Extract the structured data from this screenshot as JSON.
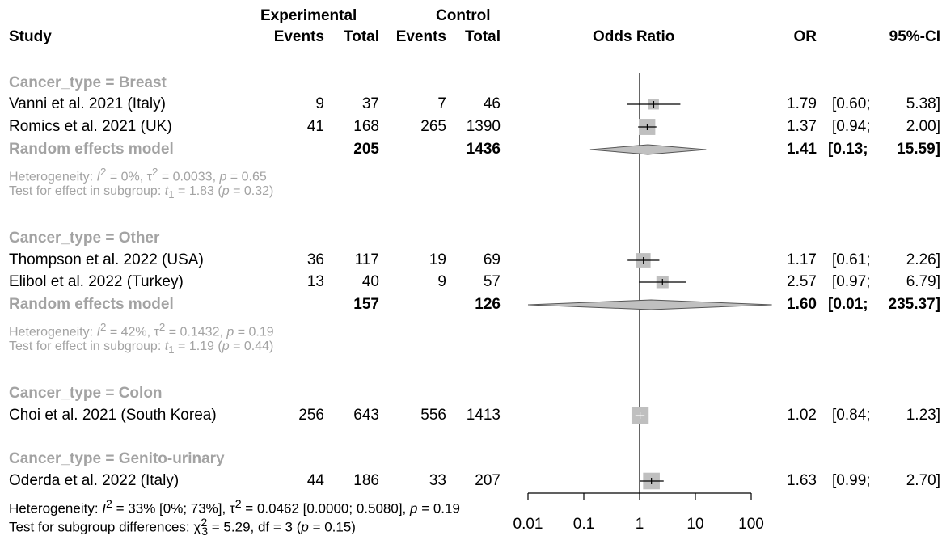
{
  "header": {
    "study": "Study",
    "experimental": "Experimental",
    "control": "Control",
    "events": "Events",
    "total": "Total",
    "odds_ratio": "Odds Ratio",
    "or": "OR",
    "ci": "95%-CI"
  },
  "groups": [
    {
      "title": "Cancer_type = Breast",
      "studies": [
        {
          "name": "Vanni et al. 2021 (Italy)",
          "e_events": "9",
          "e_total": "37",
          "c_events": "7",
          "c_total": "46",
          "or": "1.79",
          "ci_lo": "[0.60;",
          "ci_hi": "5.38]"
        },
        {
          "name": "Romics et al. 2021 (UK)",
          "e_events": "41",
          "e_total": "168",
          "c_events": "265",
          "c_total": "1390",
          "or": "1.37",
          "ci_lo": "[0.94;",
          "ci_hi": "2.00]"
        }
      ],
      "model": {
        "label": "Random effects model",
        "e_total": "205",
        "c_total": "1436",
        "or": "1.41",
        "ci_lo": "[0.13;",
        "ci_hi": "15.59]"
      },
      "heterogeneity": {
        "pre": "Heterogeneity: ",
        "i_sym": "I",
        "i_rest": " = 0%, ",
        "tau_sym": "τ",
        "tau_rest": " = 0.0033, ",
        "p_sym": "p",
        "p_rest": " = 0.65"
      },
      "test": {
        "pre": "Test for effect in subgroup: ",
        "t_sym": "t",
        "t_sub": "1",
        "t_rest": " = 1.83 (",
        "p_sym": "p",
        "p_rest": " = 0.32)"
      }
    },
    {
      "title": "Cancer_type = Other",
      "studies": [
        {
          "name": "Thompson et al. 2022 (USA)",
          "e_events": "36",
          "e_total": "117",
          "c_events": "19",
          "c_total": "69",
          "or": "1.17",
          "ci_lo": "[0.61;",
          "ci_hi": "2.26]"
        },
        {
          "name": "Elibol et al. 2022 (Turkey)",
          "e_events": "13",
          "e_total": "40",
          "c_events": "9",
          "c_total": "57",
          "or": "2.57",
          "ci_lo": "[0.97;",
          "ci_hi": "6.79]"
        }
      ],
      "model": {
        "label": "Random effects model",
        "e_total": "157",
        "c_total": "126",
        "or": "1.60",
        "ci_lo": "[0.01;",
        "ci_hi": "235.37]"
      },
      "heterogeneity": {
        "pre": "Heterogeneity: ",
        "i_sym": "I",
        "i_rest": " = 42%, ",
        "tau_sym": "τ",
        "tau_rest": " = 0.1432, ",
        "p_sym": "p",
        "p_rest": " = 0.19"
      },
      "test": {
        "pre": "Test for effect in subgroup: ",
        "t_sym": "t",
        "t_sub": "1",
        "t_rest": " = 1.19 (",
        "p_sym": "p",
        "p_rest": " = 0.44)"
      }
    },
    {
      "title": "Cancer_type = Colon",
      "studies": [
        {
          "name": "Choi et al. 2021 (South Korea)",
          "e_events": "256",
          "e_total": "643",
          "c_events": "556",
          "c_total": "1413",
          "or": "1.02",
          "ci_lo": "[0.84;",
          "ci_hi": "1.23]"
        }
      ]
    },
    {
      "title": "Cancer_type = Genito-urinary",
      "studies": [
        {
          "name": "Oderda et al. 2022 (Italy)",
          "e_events": "44",
          "e_total": "186",
          "c_events": "33",
          "c_total": "207",
          "or": "1.63",
          "ci_lo": "[0.99;",
          "ci_hi": "2.70]"
        }
      ]
    }
  ],
  "overall_heterogeneity": {
    "pre": "Heterogeneity: ",
    "i_sym": "I",
    "i_rest": " = 33% [0%; 73%], ",
    "tau_sym": "τ",
    "tau_rest": " = 0.0462 [0.0000; 0.5080], ",
    "p_sym": "p",
    "p_rest": " = 0.19"
  },
  "subgroup_test": {
    "pre": "Test for subgroup differences: ",
    "chi_sym": "χ",
    "chi_sub": "3",
    "chi_rest": " = 5.29, df = 3 (",
    "p_sym": "p",
    "p_rest": " = 0.15)"
  },
  "colors": {
    "subgroup_text": "#a3a3a3",
    "box": "#bfbfbf",
    "diamond": "#c0c0c0",
    "line": "#000000"
  },
  "chart_data": {
    "type": "forest",
    "x_scale": "log",
    "xlim": [
      0.01,
      100
    ],
    "x_ticks": [
      "0.01",
      "0.1",
      "1",
      "10",
      "100"
    ],
    "reference_line": 1,
    "studies": [
      {
        "name": "Vanni et al. 2021 (Italy)",
        "group": "Breast",
        "or": 1.79,
        "lo": 0.6,
        "hi": 5.38,
        "weight": 0.35
      },
      {
        "name": "Romics et al. 2021 (UK)",
        "group": "Breast",
        "or": 1.37,
        "lo": 0.94,
        "hi": 2.0,
        "weight": 0.85
      },
      {
        "name": "Thompson et al. 2022 (USA)",
        "group": "Other",
        "or": 1.17,
        "lo": 0.61,
        "hi": 2.26,
        "weight": 0.7
      },
      {
        "name": "Elibol et al. 2022 (Turkey)",
        "group": "Other",
        "or": 2.57,
        "lo": 0.97,
        "hi": 6.79,
        "weight": 0.5
      },
      {
        "name": "Choi et al. 2021 (South Korea)",
        "group": "Colon",
        "or": 1.02,
        "lo": 0.84,
        "hi": 1.23,
        "weight": 0.95
      },
      {
        "name": "Oderda et al. 2022 (Italy)",
        "group": "Genito-urinary",
        "or": 1.63,
        "lo": 0.99,
        "hi": 2.7,
        "weight": 0.9
      }
    ],
    "models": [
      {
        "group": "Breast",
        "or": 1.41,
        "lo": 0.13,
        "hi": 15.59
      },
      {
        "group": "Other",
        "or": 1.6,
        "lo": 0.01,
        "hi": 235.37
      }
    ]
  }
}
